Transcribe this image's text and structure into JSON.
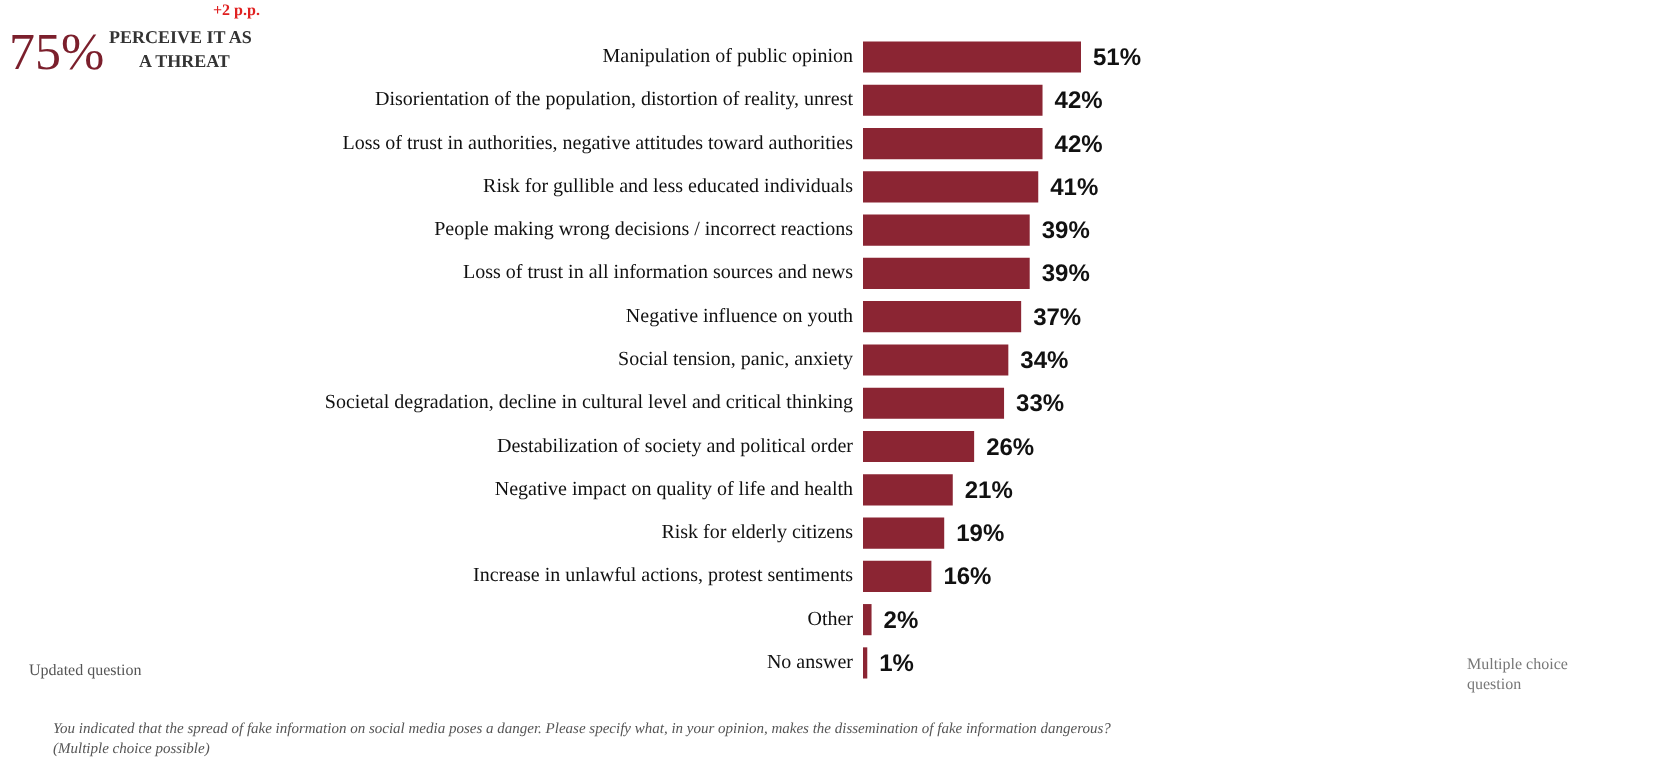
{
  "chart_data": {
    "type": "bar",
    "orientation": "horizontal",
    "data_labels": true,
    "grid": false,
    "categories": [
      "Manipulation of public opinion",
      "Disorientation of the population, distortion of reality, unrest",
      "Loss of trust in authorities, negative attitudes toward authorities",
      "Risk for gullible and less educated individuals",
      "People making wrong decisions / incorrect reactions",
      "Loss of trust in all information sources and news",
      "Negative influence on youth",
      "Social tension, panic, anxiety",
      "Societal degradation, decline in cultural level and critical thinking",
      "Destabilization of society and political order",
      "Negative impact on quality of life and health",
      "Risk for elderly citizens",
      "Increase in unlawful actions, protest sentiments",
      "Other",
      "No answer"
    ],
    "values": [
      51,
      42,
      42,
      41,
      39,
      39,
      37,
      34,
      33,
      26,
      21,
      19,
      16,
      2,
      1
    ],
    "value_labels": [
      "51%",
      "42%",
      "42%",
      "41%",
      "39%",
      "39%",
      "37%",
      "34%",
      "33%",
      "26%",
      "21%",
      "19%",
      "16%",
      "2%",
      "1%"
    ],
    "color": "#8b2533",
    "annotations": [
      "+2 p.p.",
      "75%",
      "PERCEIVE IT AS",
      "A THREAT",
      "Updated question",
      "Multiple choice",
      "question",
      "You indicated that the spread of fake information on social media poses a danger. Please specify what, in your opinion, makes the dissemination of fake information dangerous?",
      "(Multiple choice possible)"
    ]
  }
}
